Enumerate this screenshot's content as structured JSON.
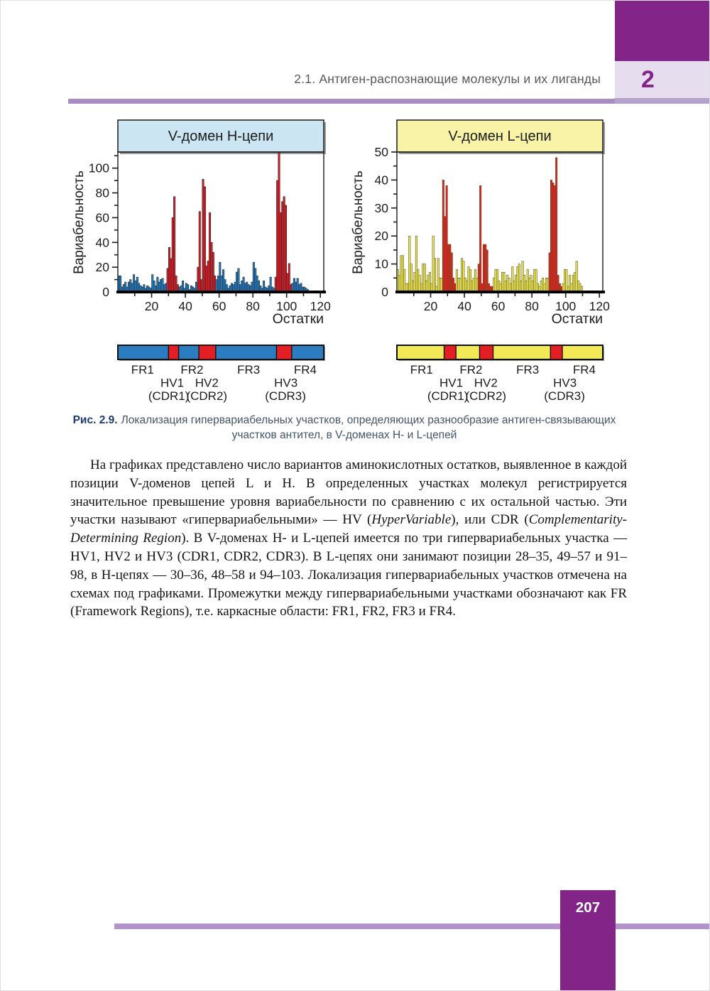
{
  "page": {
    "chapter_tab": "2",
    "running_head": "2.1. Антиген-распознающие молекулы и их лиганды",
    "page_number": "207",
    "accent_colors": {
      "purple_dark": "#822488",
      "lavender": "#e6ddef",
      "lavender_strip": "#b4a2cd",
      "rule_purple": "#a78cc2",
      "footer_line": "#b294ca"
    }
  },
  "figure": {
    "caption_label": "Рис. 2.9.",
    "caption_text": "Локализация гипервариабельных участков, определяющих разнообразие антиген-связывающих участков антител, в V-доменах H- и L-цепей"
  },
  "chart_data": [
    {
      "type": "bar",
      "id": "h-chain",
      "title": "V-домен H-цепи",
      "ylabel": "Вариабельность",
      "xlabel": "Остатки",
      "ylim": [
        0,
        113
      ],
      "ytick_label_step": 20,
      "ytick_minor_step": 10,
      "ytick_label_max": 100,
      "ytick_minor_max": 110,
      "xlim": [
        0,
        122
      ],
      "xtick_label_step": 20,
      "xtick_minor_step": 10,
      "xtick_max": 120,
      "hv_regions": [
        [
          30,
          36
        ],
        [
          48,
          58
        ],
        [
          94,
          103
        ]
      ],
      "values": [
        13,
        13,
        4,
        6,
        8,
        4,
        8,
        10,
        7,
        14,
        9,
        12,
        7,
        5,
        4,
        6,
        3,
        5,
        4,
        3,
        14,
        9,
        5,
        12,
        8,
        10,
        11,
        6,
        7,
        19,
        36,
        27,
        60,
        77,
        13,
        6,
        4,
        5,
        9,
        3,
        7,
        6,
        2,
        5,
        4,
        3,
        8,
        20,
        65,
        10,
        91,
        85,
        21,
        25,
        64,
        40,
        32,
        13,
        10,
        13,
        24,
        13,
        18,
        10,
        6,
        3,
        5,
        7,
        6,
        8,
        16,
        19,
        6,
        9,
        12,
        7,
        8,
        6,
        5,
        8,
        24,
        19,
        13,
        9,
        5,
        3,
        9,
        4,
        3,
        5,
        12,
        4,
        3,
        12,
        90,
        113,
        64,
        73,
        77,
        70,
        15,
        23,
        6,
        7,
        11,
        8,
        11,
        6,
        7,
        4,
        4,
        3,
        2
      ],
      "colors": {
        "bar": "#2a7dc0",
        "hv": "#e41e25",
        "header_fill": "#cbe5f3",
        "outline": "#16222b"
      }
    },
    {
      "type": "bar",
      "id": "l-chain",
      "title": "V-домен L-цепи",
      "ylabel": "Вариабельность",
      "xlabel": "Остатки",
      "ylim": [
        0,
        50
      ],
      "ytick_label_step": 10,
      "ytick_minor_step": 5,
      "ytick_label_max": 50,
      "ytick_minor_max": 50,
      "xlim": [
        0,
        122
      ],
      "xtick_label_step": 20,
      "xtick_minor_step": 10,
      "xtick_max": 120,
      "hv_regions": [
        [
          28,
          35
        ],
        [
          49,
          57
        ],
        [
          91,
          98
        ]
      ],
      "values": [
        8,
        6,
        13,
        13,
        8,
        3,
        3,
        20,
        10,
        4,
        7,
        20,
        8,
        6,
        3,
        10,
        10,
        4,
        6,
        7,
        3,
        20,
        12,
        2,
        12,
        5,
        5,
        40,
        27,
        38,
        17,
        17,
        14,
        5,
        3,
        8,
        5,
        5,
        12,
        11,
        5,
        4,
        9,
        8,
        4,
        5,
        8,
        5,
        10,
        38,
        3,
        17,
        17,
        15,
        3,
        2,
        2,
        5,
        8,
        8,
        4,
        3,
        7,
        7,
        4,
        6,
        5,
        3,
        9,
        4,
        6,
        9,
        10,
        4,
        11,
        6,
        4,
        8,
        5,
        6,
        4,
        8,
        8,
        3,
        2,
        4,
        5,
        3,
        5,
        5,
        14,
        40,
        39,
        38,
        48,
        6,
        3,
        2,
        3,
        8,
        8,
        2,
        6,
        3,
        6,
        7,
        11,
        4,
        3,
        2
      ],
      "colors": {
        "bar": "#f2e959",
        "hv": "#e41e25",
        "header_fill": "#f8f3a6",
        "outline": "#55551a"
      }
    }
  ],
  "schematics": [
    {
      "id": "h-chain-map",
      "bar_color": "#2a7dc0",
      "hv_color": "#e41e25",
      "domain": [
        0,
        122
      ],
      "regions": [
        [
          30,
          36
        ],
        [
          48,
          58
        ],
        [
          94,
          103
        ]
      ],
      "labels": [
        {
          "text": "FR1",
          "fx": 0.12,
          "row": 0
        },
        {
          "text": "FR2",
          "fx": 0.36,
          "row": 0
        },
        {
          "text": "FR3",
          "fx": 0.635,
          "row": 0
        },
        {
          "text": "FR4",
          "fx": 0.91,
          "row": 0
        },
        {
          "text": "HV1",
          "fx": 0.264,
          "row": 1
        },
        {
          "text": "HV2",
          "fx": 0.432,
          "row": 1
        },
        {
          "text": "HV3",
          "fx": 0.816,
          "row": 1
        },
        {
          "text": "(CDR1)",
          "fx": 0.247,
          "row": 2
        },
        {
          "text": "(CDR2)",
          "fx": 0.432,
          "row": 2
        },
        {
          "text": "(CDR3)",
          "fx": 0.814,
          "row": 2
        }
      ]
    },
    {
      "id": "l-chain-map",
      "bar_color": "#f2e959",
      "hv_color": "#e41e25",
      "domain": [
        0,
        122
      ],
      "regions": [
        [
          28,
          35
        ],
        [
          49,
          57
        ],
        [
          91,
          98
        ]
      ],
      "labels": [
        {
          "text": "FR1",
          "fx": 0.12,
          "row": 0
        },
        {
          "text": "FR2",
          "fx": 0.36,
          "row": 0
        },
        {
          "text": "FR3",
          "fx": 0.635,
          "row": 0
        },
        {
          "text": "FR4",
          "fx": 0.91,
          "row": 0
        },
        {
          "text": "HV1",
          "fx": 0.264,
          "row": 1
        },
        {
          "text": "HV2",
          "fx": 0.432,
          "row": 1
        },
        {
          "text": "HV3",
          "fx": 0.816,
          "row": 1
        },
        {
          "text": "(CDR1)",
          "fx": 0.247,
          "row": 2
        },
        {
          "text": "(CDR2)",
          "fx": 0.432,
          "row": 2
        },
        {
          "text": "(CDR3)",
          "fx": 0.814,
          "row": 2
        }
      ]
    }
  ],
  "body": {
    "segments": [
      {
        "text": "На графиках представлено число вариантов аминокислотных остатков, выявленное в каждой позиции V-доменов цепей L и H. В определенных участках молекул регистрируется значительное превышение уровня вариабельности по сравнению с их остальной частью. Эти участки называют «гипервариабельными» — HV ("
      },
      {
        "text": "HyperVariable",
        "italic": true
      },
      {
        "text": "), или CDR ("
      },
      {
        "text": "Complementarity-Determining Region",
        "italic": true
      },
      {
        "text": "). В V-доменах H- и L-цепей имеется по три гипервариабельных участка — HV1, HV2 и HV3 (CDR1, CDR2, CDR3). В L-цепях они занимают позиции 28–35, 49–57 и 91–98, в H-цепях — 30–36, 48–58 и 94–103. Локализация гипервариабельных участков отмечена на схемах под графиками. Промежутки между гипервариабельными участками обозначают как FR (Framework Regions), т.е. каркасные области: FR1, FR2, FR3 и FR4."
      }
    ]
  }
}
